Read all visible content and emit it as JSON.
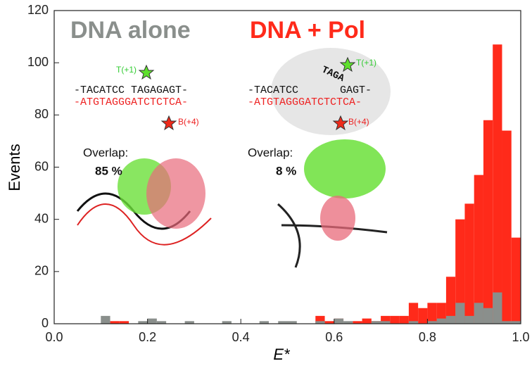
{
  "chart_data": {
    "type": "histogram",
    "xlabel": "E*",
    "ylabel": "Events",
    "bins": [
      0,
      0.02,
      0.04,
      0.06,
      0.08,
      0.1,
      0.12,
      0.14,
      0.16,
      0.18,
      0.2,
      0.22,
      0.24,
      0.26,
      0.28,
      0.3,
      0.32,
      0.34,
      0.36,
      0.38,
      0.4,
      0.42,
      0.44,
      0.46,
      0.48,
      0.5,
      0.52,
      0.54,
      0.56,
      0.58,
      0.6,
      0.62,
      0.64,
      0.66,
      0.68,
      0.7,
      0.72,
      0.74,
      0.76,
      0.78,
      0.8,
      0.82,
      0.84,
      0.86,
      0.88,
      0.9,
      0.92,
      0.94,
      0.96,
      0.98,
      1
    ],
    "series": [
      {
        "name": "DNA + Pol",
        "color": "#ff2a1a",
        "values": [
          0,
          0,
          0,
          0,
          0,
          0,
          1,
          1,
          0,
          0,
          0,
          0,
          0,
          0,
          0,
          0,
          0,
          0,
          0,
          0,
          0,
          0,
          0,
          0,
          0,
          0,
          0,
          0,
          3,
          1,
          2,
          0,
          1,
          2,
          1,
          3,
          3,
          3,
          8,
          6,
          8,
          8,
          18,
          40,
          46,
          57,
          78,
          107,
          74,
          33
        ]
      },
      {
        "name": "DNA alone",
        "color": "#8a8f8c",
        "values": [
          0,
          0,
          0,
          0,
          0,
          3,
          0,
          0,
          0,
          1,
          2,
          1,
          0,
          0,
          1,
          0,
          0,
          0,
          1,
          0,
          0,
          0,
          1,
          0,
          1,
          1,
          0,
          0,
          1,
          0,
          2,
          1,
          0,
          0,
          1,
          1,
          0,
          0,
          1,
          0,
          1,
          2,
          3,
          8,
          3,
          8,
          6,
          12,
          1,
          1
        ]
      }
    ],
    "xlim": [
      0,
      1
    ],
    "ylim": [
      0,
      120
    ],
    "xticks": [
      {
        "value": 0,
        "label": "0.0"
      },
      0.2,
      0.4,
      0.6,
      0.8,
      {
        "value": 1,
        "label": "1.0"
      }
    ],
    "yticks": [
      0,
      20,
      40,
      60,
      80,
      100,
      120
    ],
    "annotations": [
      "T(+1)",
      "-TACATCC TAGAGAGT-",
      "-ATGTAGGGATCTCTCA-",
      "B(+4)",
      "Overlap:",
      "85 %",
      "T(+1)",
      "TAGA",
      "-TACATCC",
      "GAGT-",
      "-ATGTAGGGATCTCTCA-",
      "B(+4)",
      "Overlap:",
      "8 %"
    ]
  }
}
